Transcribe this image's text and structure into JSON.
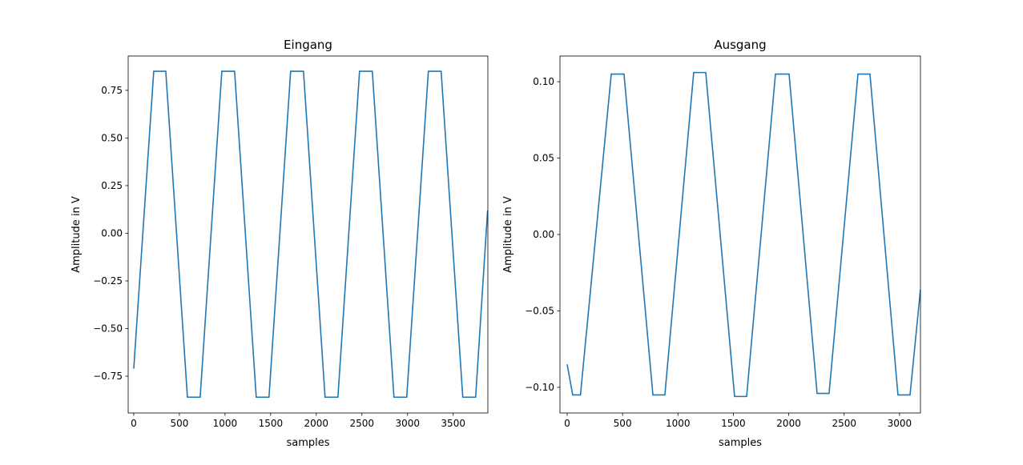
{
  "chart_data": [
    {
      "type": "line",
      "title": "Eingang",
      "xlabel": "samples",
      "ylabel": "Amplitude in V",
      "color": "#1f77b4",
      "x": [
        0,
        219,
        351,
        588,
        728,
        965,
        1105,
        1342,
        1482,
        1719,
        1860,
        2096,
        2237,
        2474,
        2614,
        2851,
        2991,
        3228,
        3368,
        3605,
        3746,
        3877
      ],
      "values": [
        -0.71,
        0.85,
        0.85,
        -0.86,
        -0.86,
        0.85,
        0.85,
        -0.86,
        -0.86,
        0.85,
        0.85,
        -0.86,
        -0.86,
        0.85,
        0.85,
        -0.86,
        -0.86,
        0.85,
        0.85,
        -0.86,
        -0.86,
        0.12
      ],
      "xlim": [
        -61,
        3880
      ],
      "ylim": [
        -0.943,
        0.93
      ],
      "xticks": [
        0,
        500,
        1000,
        1500,
        2000,
        2500,
        3000,
        3500
      ],
      "yticks": [
        {
          "value": -0.75,
          "label": "−0.75"
        },
        {
          "value": -0.5,
          "label": "−0.50"
        },
        {
          "value": -0.25,
          "label": "−0.25"
        },
        {
          "value": 0,
          "label": "0.00"
        },
        0.25,
        {
          "value": 0.5,
          "label": "0.50"
        },
        0.75
      ]
    },
    {
      "type": "line",
      "title": "Ausgang",
      "xlabel": "samples",
      "ylabel": "Amplitude in V",
      "color": "#1f77b4",
      "x": [
        0,
        50,
        120,
        398,
        513,
        774,
        882,
        1142,
        1251,
        1511,
        1620,
        1880,
        2003,
        2256,
        2364,
        2625,
        2733,
        2986,
        3095,
        3189
      ],
      "values": [
        -0.085,
        -0.105,
        -0.105,
        0.105,
        0.105,
        -0.105,
        -0.105,
        0.106,
        0.106,
        -0.106,
        -0.106,
        0.105,
        0.105,
        -0.104,
        -0.104,
        0.105,
        0.105,
        -0.105,
        -0.105,
        -0.036
      ],
      "xlim": [
        -65,
        3189
      ],
      "ylim": [
        -0.1168,
        0.1168
      ],
      "xticks": [
        0,
        500,
        1000,
        1500,
        2000,
        2500,
        3000
      ],
      "yticks": [
        {
          "value": -0.1,
          "label": "−0.10"
        },
        {
          "value": -0.05,
          "label": "−0.05"
        },
        {
          "value": 0,
          "label": "0.00"
        },
        0.05,
        {
          "value": 0.1,
          "label": "0.10"
        }
      ]
    }
  ]
}
